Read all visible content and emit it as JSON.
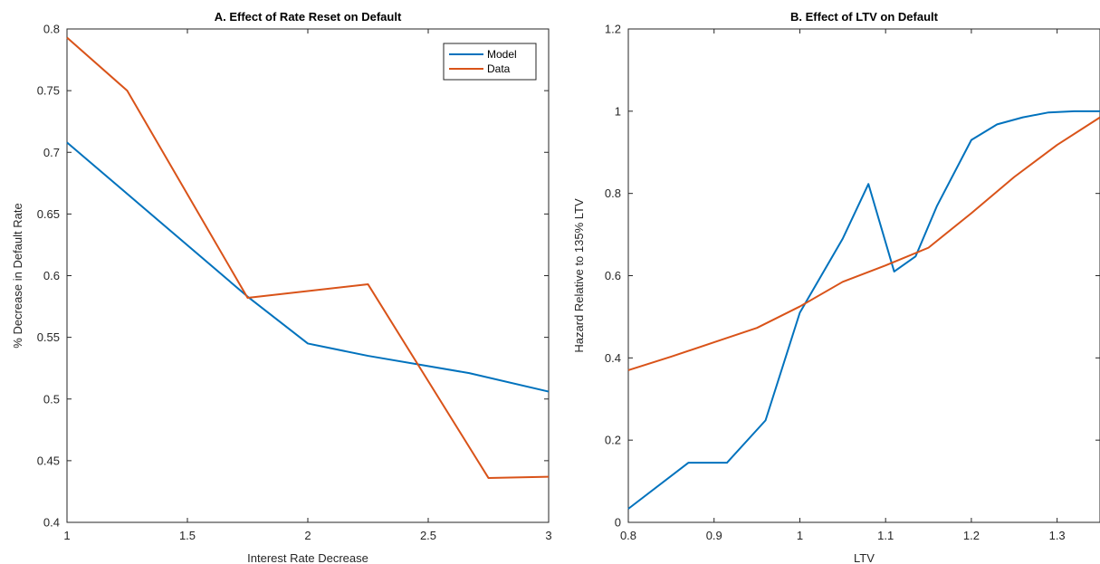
{
  "chart_data": [
    {
      "type": "line",
      "title": "A. Effect of Rate Reset on Default",
      "xlabel": "Interest Rate Decrease",
      "ylabel": "% Decrease in Default Rate",
      "xlim": [
        1,
        3
      ],
      "ylim": [
        0.4,
        0.8
      ],
      "xticks": [
        1,
        1.5,
        2,
        2.5,
        3
      ],
      "xtick_labels": [
        "1",
        "1.5",
        "2",
        "2.5",
        "3"
      ],
      "yticks": [
        0.4,
        0.45,
        0.5,
        0.55,
        0.6,
        0.65,
        0.7,
        0.75,
        0.8
      ],
      "ytick_labels": [
        "0.4",
        "0.45",
        "0.5",
        "0.55",
        "0.6",
        "0.65",
        "0.7",
        "0.75",
        "0.8"
      ],
      "grid": false,
      "legend": {
        "position": "top-right",
        "entries": [
          "Model",
          "Data"
        ]
      },
      "series": [
        {
          "name": "Model",
          "color": "#0072BD",
          "x": [
            1,
            1.75,
            2,
            2.25,
            2.67,
            3
          ],
          "y": [
            0.708,
            0.583,
            0.545,
            0.535,
            0.521,
            0.506
          ]
        },
        {
          "name": "Data",
          "color": "#D95319",
          "x": [
            1,
            1.25,
            1.75,
            2.25,
            2.75,
            3
          ],
          "y": [
            0.793,
            0.75,
            0.582,
            0.593,
            0.436,
            0.437
          ]
        }
      ]
    },
    {
      "type": "line",
      "title": "B. Effect of LTV on Default",
      "xlabel": "LTV",
      "ylabel": "Hazard Relative to 135% LTV",
      "xlim": [
        0.8,
        1.35
      ],
      "ylim": [
        0,
        1.2
      ],
      "xticks": [
        0.8,
        0.9,
        1,
        1.1,
        1.2,
        1.3
      ],
      "xtick_labels": [
        "0.8",
        "0.9",
        "1",
        "1.1",
        "1.2",
        "1.3"
      ],
      "yticks": [
        0,
        0.2,
        0.4,
        0.6,
        0.8,
        1,
        1.2
      ],
      "ytick_labels": [
        "0",
        "0.2",
        "0.4",
        "0.6",
        "0.8",
        "1",
        "1.2"
      ],
      "grid": false,
      "series": [
        {
          "name": "Model",
          "color": "#0072BD",
          "x": [
            0.8,
            0.87,
            0.915,
            0.96,
            1.0,
            1.05,
            1.08,
            1.11,
            1.135,
            1.16,
            1.2,
            1.23,
            1.26,
            1.29,
            1.32,
            1.35
          ],
          "y": [
            0.033,
            0.145,
            0.145,
            0.248,
            0.51,
            0.69,
            0.823,
            0.61,
            0.647,
            0.77,
            0.93,
            0.968,
            0.985,
            0.997,
            1.0,
            1.0
          ]
        },
        {
          "name": "Data",
          "color": "#D95319",
          "x": [
            0.8,
            0.85,
            0.9,
            0.95,
            1.0,
            1.05,
            1.1,
            1.15,
            1.2,
            1.25,
            1.3,
            1.35
          ],
          "y": [
            0.37,
            0.403,
            0.438,
            0.473,
            0.525,
            0.585,
            0.625,
            0.668,
            0.752,
            0.84,
            0.918,
            0.985
          ]
        }
      ]
    }
  ]
}
